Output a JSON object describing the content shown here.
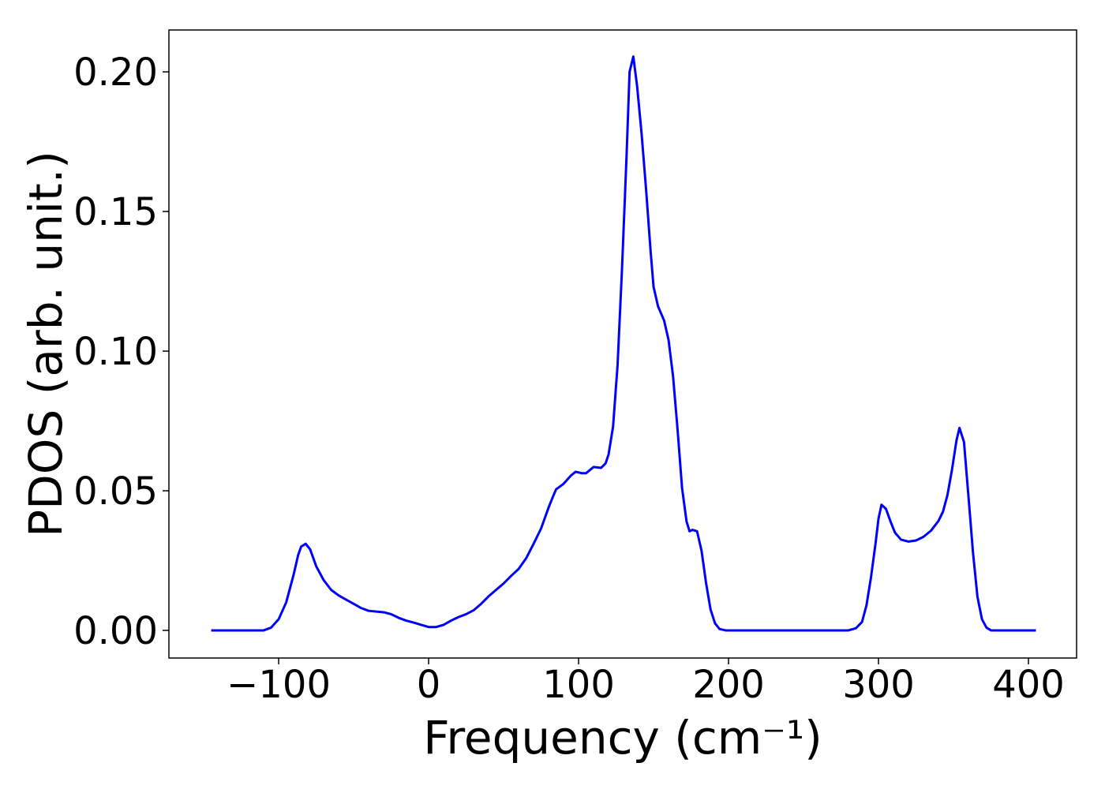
{
  "chart_data": {
    "type": "line",
    "xlabel": "Frequency (cm⁻¹)",
    "ylabel": "PDOS (arb. unit.)",
    "xlim": [
      -173.2,
      432.1
    ],
    "ylim": [
      -0.0099,
      0.215
    ],
    "xticks": [
      {
        "value": -100,
        "label": "−100"
      },
      0,
      100,
      200,
      300,
      400
    ],
    "yticks": [
      {
        "value": 0,
        "label": "0.00"
      },
      {
        "value": 0.05,
        "label": "0.05"
      },
      {
        "value": 0.1,
        "label": "0.10"
      },
      {
        "value": 0.15,
        "label": "0.15"
      },
      {
        "value": 0.2,
        "label": "0.20"
      }
    ],
    "grid": false,
    "series": [
      {
        "color": "#0000ff",
        "x": [
          -145,
          -110,
          -105,
          -100,
          -95,
          -90,
          -87,
          -85,
          -82,
          -79,
          -75,
          -70,
          -65,
          -60,
          -55,
          -50,
          -45,
          -40,
          -30,
          -25,
          -20,
          -15,
          -10,
          -5,
          0,
          5,
          10,
          15,
          20,
          25,
          30,
          35,
          40,
          45,
          50,
          55,
          60,
          65,
          70,
          75,
          80,
          83,
          85,
          90,
          95,
          98,
          102,
          105,
          110,
          115,
          118,
          120,
          123,
          126,
          129,
          132,
          134,
          136.5,
          139,
          142,
          145,
          148,
          150,
          153,
          157,
          160,
          163,
          166,
          169,
          172,
          174,
          176,
          179,
          182,
          185,
          188,
          191,
          194,
          198,
          280,
          285,
          289,
          292,
          295,
          298,
          300,
          302,
          305,
          308,
          311,
          315,
          320,
          325,
          330,
          335,
          340,
          343,
          346,
          349,
          352,
          354,
          357,
          360,
          363,
          366,
          369,
          372,
          375,
          405
        ],
        "values": [
          0,
          0,
          0.001,
          0.004,
          0.01,
          0.02,
          0.027,
          0.03,
          0.031,
          0.029,
          0.023,
          0.018,
          0.0145,
          0.0125,
          0.011,
          0.0095,
          0.008,
          0.007,
          0.0065,
          0.0058,
          0.0045,
          0.0035,
          0.0028,
          0.002,
          0.0012,
          0.0012,
          0.002,
          0.0035,
          0.0048,
          0.0058,
          0.0072,
          0.0095,
          0.0122,
          0.0145,
          0.0168,
          0.0195,
          0.022,
          0.0258,
          0.031,
          0.0365,
          0.044,
          0.048,
          0.0505,
          0.0525,
          0.0555,
          0.0568,
          0.0563,
          0.0563,
          0.0585,
          0.0582,
          0.0598,
          0.063,
          0.073,
          0.095,
          0.13,
          0.17,
          0.2,
          0.2055,
          0.195,
          0.178,
          0.158,
          0.136,
          0.123,
          0.116,
          0.111,
          0.104,
          0.091,
          0.072,
          0.051,
          0.039,
          0.0355,
          0.036,
          0.0355,
          0.0285,
          0.017,
          0.0075,
          0.0025,
          0.0005,
          0,
          0,
          0.0008,
          0.003,
          0.009,
          0.019,
          0.031,
          0.04,
          0.045,
          0.0435,
          0.039,
          0.035,
          0.0325,
          0.0318,
          0.0322,
          0.0335,
          0.0357,
          0.0392,
          0.0425,
          0.0485,
          0.0575,
          0.068,
          0.0725,
          0.0675,
          0.048,
          0.028,
          0.012,
          0.004,
          0.001,
          0,
          0
        ]
      }
    ]
  }
}
